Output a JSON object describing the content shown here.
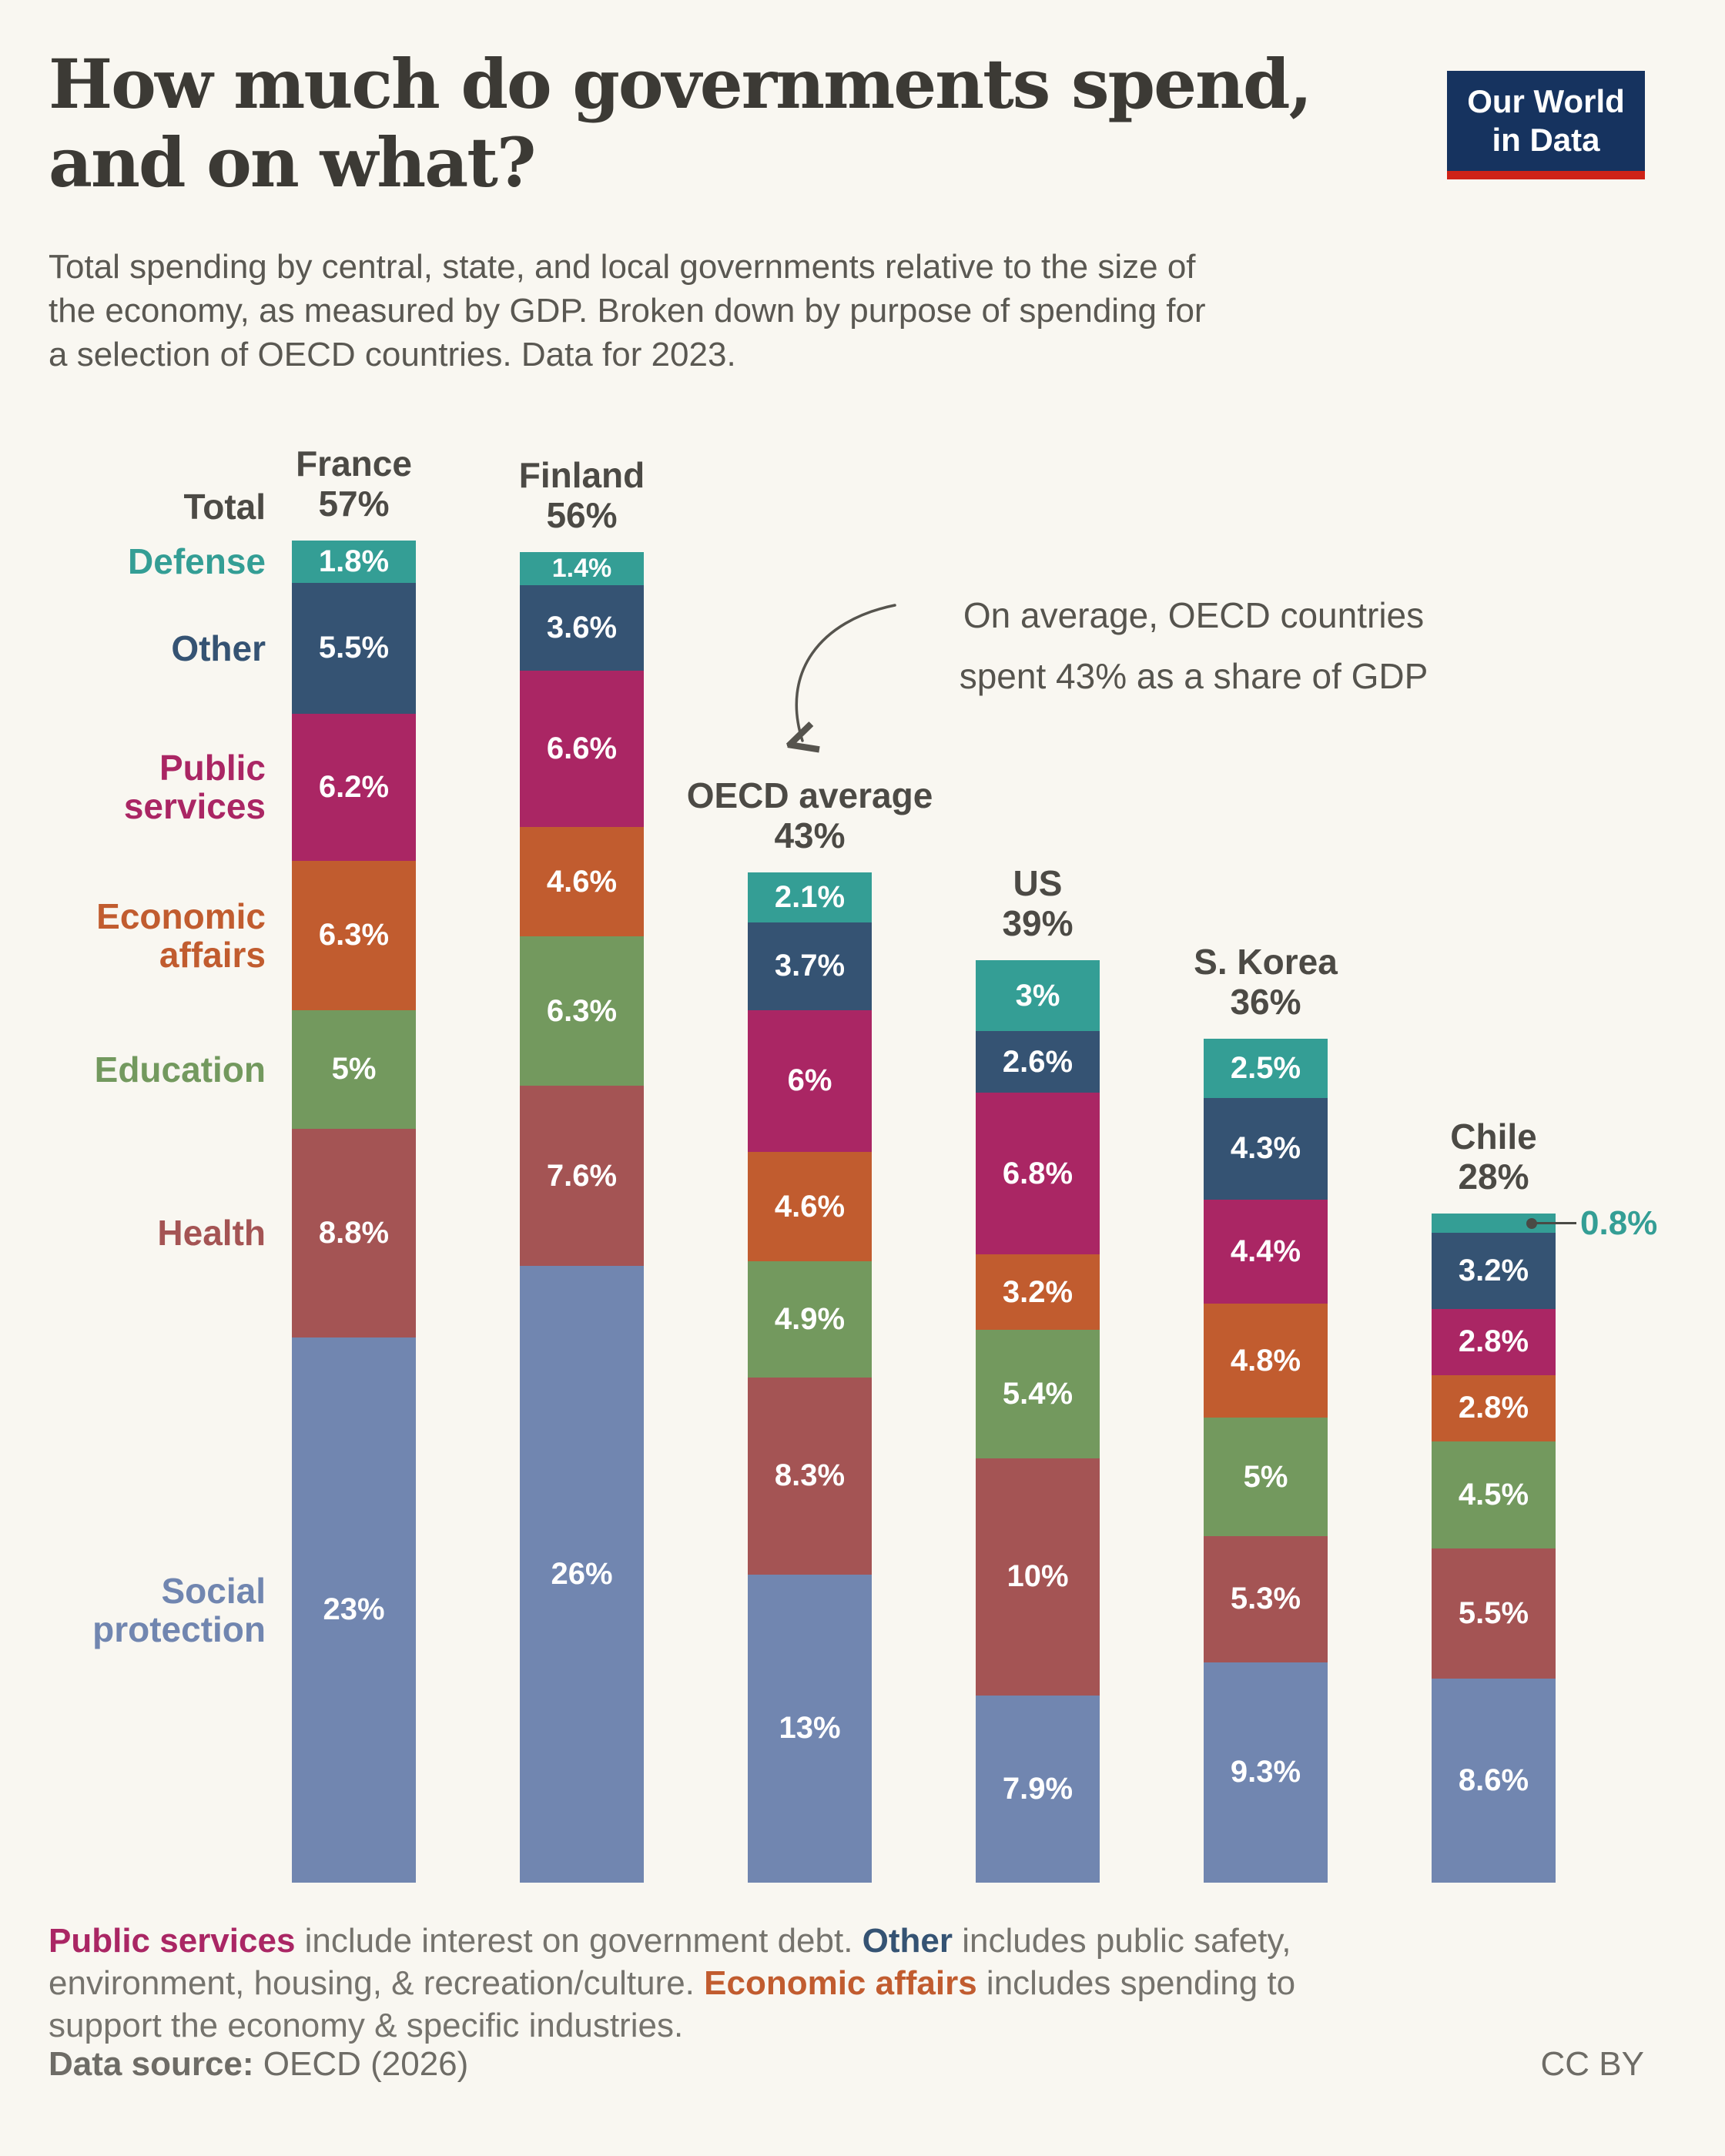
{
  "page": {
    "background": "#F9F7F1"
  },
  "header": {
    "title_line1": "How much do governments spend,",
    "title_line2": "and on what?",
    "logo": {
      "line1": "Our World",
      "line2": "in Data",
      "bg": "#16335F",
      "accent": "#CF2318"
    }
  },
  "subtitle": {
    "line1": "Total spending by central, state, and local governments relative to the size of",
    "line2": "the economy, as measured by GDP. Broken down by purpose of spending for",
    "line3": "a selection of OECD countries. Data for 2023."
  },
  "annotation": {
    "line1": "On average, OECD countries",
    "line2": "spent 43% as a share of GDP"
  },
  "colors": {
    "teal": "#349E95",
    "navy": "#355373",
    "magenta": "#AA2664",
    "orange": "#C15C2F",
    "green": "#73995E",
    "red": "#A45454",
    "slate": "#7186B0",
    "total_label": "#4C4A45",
    "background": "#F9F7F1"
  },
  "chart_data": {
    "type": "bar",
    "stacked": true,
    "unit": "% of GDP",
    "year": "2023",
    "total_label": "Total",
    "categories": [
      "Defense",
      "Other",
      "Public services",
      "Economic affairs",
      "Education",
      "Health",
      "Social protection"
    ],
    "category_colors": [
      "#349E95",
      "#355373",
      "#AA2664",
      "#C15C2F",
      "#73995E",
      "#A45454",
      "#7186B0"
    ],
    "series": [
      {
        "country": "France",
        "total": "57%",
        "values": [
          1.8,
          5.5,
          6.2,
          6.3,
          5,
          8.8,
          23
        ],
        "labels": [
          "1.8%",
          "5.5%",
          "6.2%",
          "6.3%",
          "5%",
          "8.8%",
          "23%"
        ]
      },
      {
        "country": "Finland",
        "total": "56%",
        "values": [
          1.4,
          3.6,
          6.6,
          4.6,
          6.3,
          7.6,
          26
        ],
        "labels": [
          "1.4%",
          "3.6%",
          "6.6%",
          "4.6%",
          "6.3%",
          "7.6%",
          "26%"
        ]
      },
      {
        "country": "OECD average",
        "total": "43%",
        "values": [
          2.1,
          3.7,
          6,
          4.6,
          4.9,
          8.3,
          13
        ],
        "labels": [
          "2.1%",
          "3.7%",
          "6%",
          "4.6%",
          "4.9%",
          "8.3%",
          "13%"
        ]
      },
      {
        "country": "US",
        "total": "39%",
        "values": [
          3,
          2.6,
          6.8,
          3.2,
          5.4,
          10,
          7.9
        ],
        "labels": [
          "3%",
          "2.6%",
          "6.8%",
          "3.2%",
          "5.4%",
          "10%",
          "7.9%"
        ]
      },
      {
        "country": "S. Korea",
        "total": "36%",
        "values": [
          2.5,
          4.3,
          4.4,
          4.8,
          5,
          5.3,
          9.3
        ],
        "labels": [
          "2.5%",
          "4.3%",
          "4.4%",
          "4.8%",
          "5%",
          "5.3%",
          "9.3%"
        ]
      },
      {
        "country": "Chile",
        "total": "28%",
        "values": [
          0.8,
          3.2,
          2.8,
          2.8,
          4.5,
          5.5,
          8.6
        ],
        "labels": [
          "0.8%",
          "3.2%",
          "2.8%",
          "2.8%",
          "4.5%",
          "5.5%",
          "8.6%"
        ],
        "callout": {
          "index": 0,
          "label": "0.8%"
        }
      }
    ]
  },
  "footnote": {
    "lines": [
      [
        {
          "text": "Public services",
          "color": "#AA2664",
          "bold": true
        },
        {
          "text": " include interest on government debt. "
        },
        {
          "text": "Other",
          "color": "#355373",
          "bold": true
        },
        {
          "text": " includes public safety,"
        }
      ],
      [
        {
          "text": "environment, housing, & recreation/culture. "
        },
        {
          "text": "Economic affairs",
          "color": "#C15C2F",
          "bold": true
        },
        {
          "text": " includes spending to"
        }
      ],
      [
        {
          "text": "support the economy & specific industries."
        }
      ]
    ]
  },
  "footer": {
    "source_label": "Data source:",
    "source_value": " OECD (2026)",
    "license": "CC BY"
  }
}
